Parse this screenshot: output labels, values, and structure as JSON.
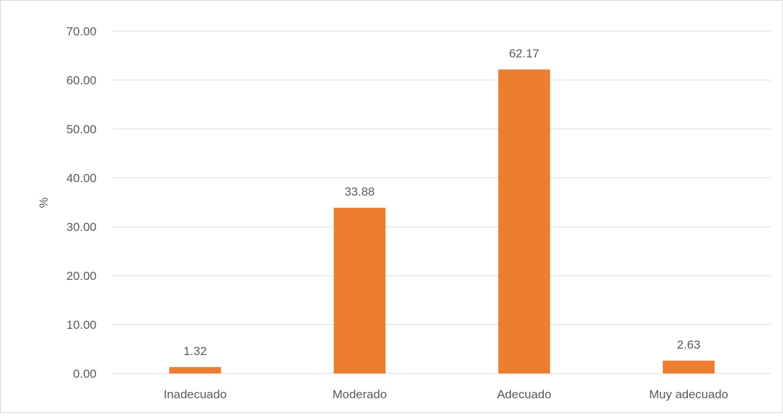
{
  "chart_data": {
    "type": "bar",
    "title": "",
    "xlabel": "",
    "ylabel": "%",
    "categories": [
      "Inadecuado",
      "Moderado",
      "Adecuado",
      "Muy adecuado"
    ],
    "values": [
      1.32,
      33.88,
      62.17,
      2.63
    ],
    "data_labels": [
      "1.32",
      "33.88",
      "62.17",
      "2.63"
    ],
    "ylim": [
      0,
      70
    ],
    "y_ticks": [
      0,
      10,
      20,
      30,
      40,
      50,
      60,
      70
    ],
    "y_tick_labels": [
      "0.00",
      "10.00",
      "20.00",
      "30.00",
      "40.00",
      "50.00",
      "60.00",
      "70.00"
    ],
    "grid": true,
    "legend": "none",
    "colors": {
      "bar": "#ED7D31",
      "grid": "#d9d9d9",
      "text": "#595959"
    }
  }
}
